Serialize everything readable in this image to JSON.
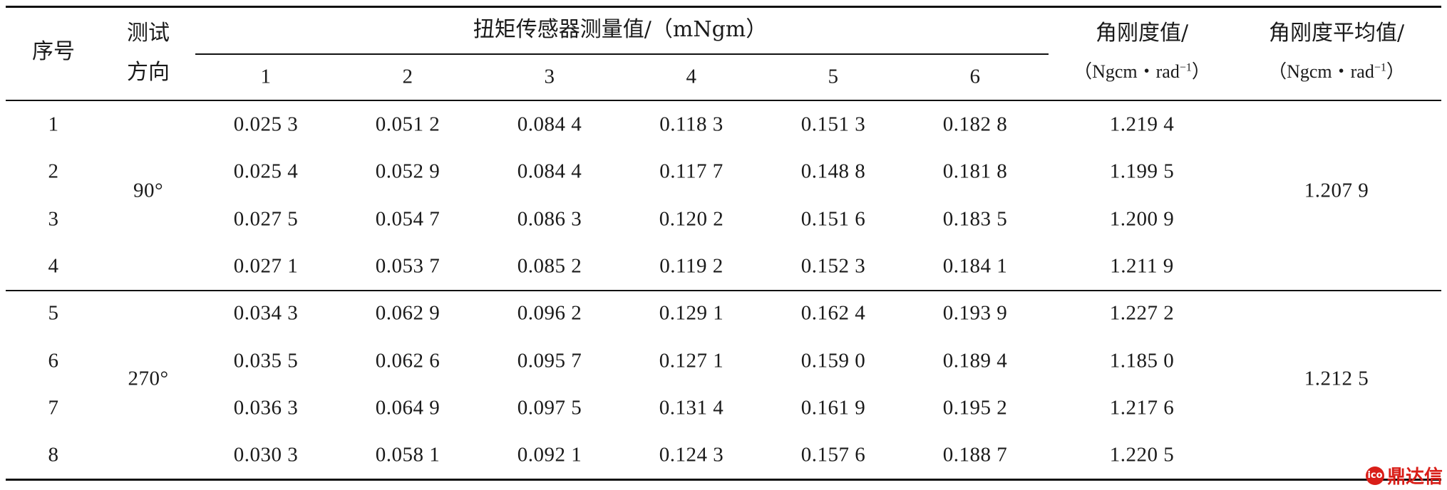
{
  "table": {
    "headers": {
      "index": "序号",
      "direction_line1": "测试",
      "direction_line2": "方向",
      "torque_group": "扭矩传感器测量值/（mNgm）",
      "torque_cols": [
        "1",
        "2",
        "3",
        "4",
        "5",
        "6"
      ],
      "stiffness_line1": "角刚度值/",
      "stiffness_unit": "（Ngcm・rad",
      "stiffness_sup": "−1",
      "stiffness_close": "）",
      "avg_line1": "角刚度平均值/",
      "avg_unit": "（Ngcm・rad",
      "avg_sup": "−1",
      "avg_close": "）"
    },
    "groups": [
      {
        "direction": "90°",
        "average": "1.207 9",
        "rows": [
          {
            "index": "1",
            "torque": [
              "0.025 3",
              "0.051 2",
              "0.084 4",
              "0.118 3",
              "0.151 3",
              "0.182 8"
            ],
            "stiffness": "1.219 4"
          },
          {
            "index": "2",
            "torque": [
              "0.025 4",
              "0.052 9",
              "0.084 4",
              "0.117 7",
              "0.148 8",
              "0.181 8"
            ],
            "stiffness": "1.199 5"
          },
          {
            "index": "3",
            "torque": [
              "0.027 5",
              "0.054 7",
              "0.086 3",
              "0.120 2",
              "0.151 6",
              "0.183 5"
            ],
            "stiffness": "1.200 9"
          },
          {
            "index": "4",
            "torque": [
              "0.027 1",
              "0.053 7",
              "0.085 2",
              "0.119 2",
              "0.152 3",
              "0.184 1"
            ],
            "stiffness": "1.211 9"
          }
        ]
      },
      {
        "direction": "270°",
        "average": "1.212 5",
        "rows": [
          {
            "index": "5",
            "torque": [
              "0.034 3",
              "0.062 9",
              "0.096 2",
              "0.129 1",
              "0.162 4",
              "0.193 9"
            ],
            "stiffness": "1.227 2"
          },
          {
            "index": "6",
            "torque": [
              "0.035 5",
              "0.062 6",
              "0.095 7",
              "0.127 1",
              "0.159 0",
              "0.189 4"
            ],
            "stiffness": "1.185 0"
          },
          {
            "index": "7",
            "torque": [
              "0.036 3",
              "0.064 9",
              "0.097 5",
              "0.131 4",
              "0.161 9",
              "0.195 2"
            ],
            "stiffness": "1.217 6"
          },
          {
            "index": "8",
            "torque": [
              "0.030 3",
              "0.058 1",
              "0.092 1",
              "0.124 3",
              "0.157 6",
              "0.188 7"
            ],
            "stiffness": "1.220 5"
          }
        ]
      }
    ]
  },
  "watermark": {
    "logo": "ico",
    "text": "鼎达信"
  }
}
